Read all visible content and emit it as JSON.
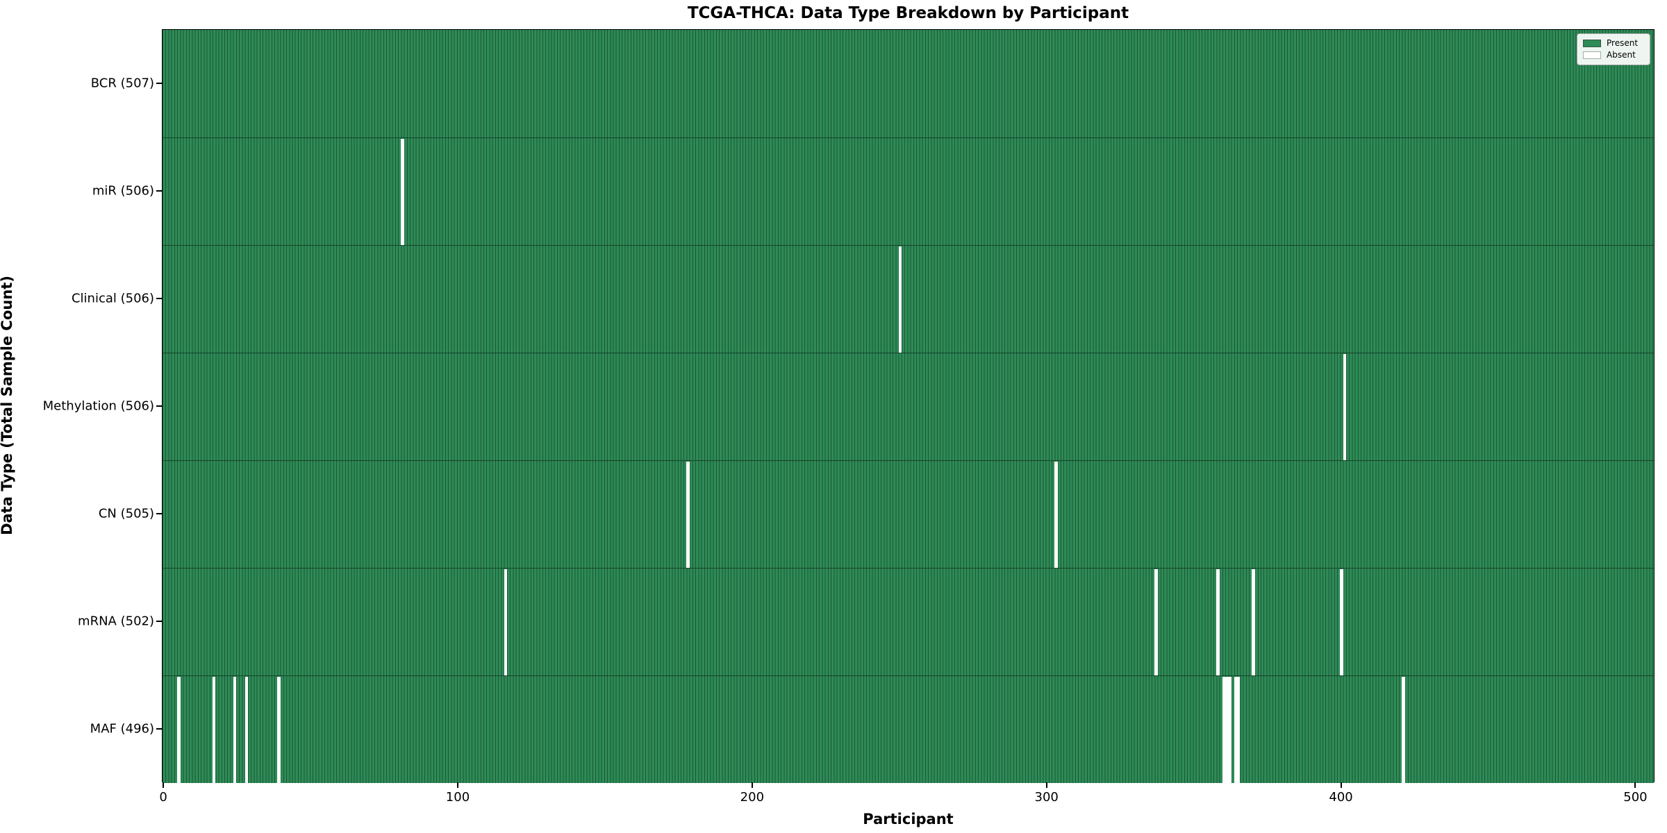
{
  "title": "TCGA-THCA: Data Type Breakdown by Participant",
  "x_axis_label": "Participant",
  "y_axis_label": "Data Type (Total Sample Count)",
  "legend": {
    "position": "upper right",
    "present_label": "Present",
    "absent_label": "Absent"
  },
  "colors": {
    "present": "#2e8b57",
    "absent": "#ffffff",
    "bar_edge": "#1b5736",
    "axis": "#000000",
    "background": "#ffffff"
  },
  "chart_data": {
    "type": "heatmap",
    "subtype": "presence-absence-matrix",
    "title": "TCGA-THCA: Data Type Breakdown by Participant",
    "xlabel": "Participant",
    "ylabel": "Data Type (Total Sample Count)",
    "x_ticks": [
      0,
      100,
      200,
      300,
      400,
      500
    ],
    "xlim": [
      0,
      507
    ],
    "total_participants": 507,
    "grid": false,
    "legend_entries": [
      "Present",
      "Absent"
    ],
    "rows": [
      {
        "label": "BCR (507)",
        "data_type": "BCR",
        "count": 507,
        "absent_participants": []
      },
      {
        "label": "miR (506)",
        "data_type": "miR",
        "count": 506,
        "absent_participants": [
          81
        ]
      },
      {
        "label": "Clinical (506)",
        "data_type": "Clinical",
        "count": 506,
        "absent_participants": [
          250
        ]
      },
      {
        "label": "Methylation (506)",
        "data_type": "Methylation",
        "count": 506,
        "absent_participants": [
          401
        ]
      },
      {
        "label": "CN (505)",
        "data_type": "CN",
        "count": 505,
        "absent_participants": [
          178,
          303
        ]
      },
      {
        "label": "mRNA (502)",
        "data_type": "mRNA",
        "count": 502,
        "absent_participants": [
          116,
          337,
          358,
          370,
          400
        ]
      },
      {
        "label": "MAF (496)",
        "data_type": "MAF",
        "count": 496,
        "absent_participants": [
          5,
          17,
          24,
          28,
          39,
          360,
          361,
          362,
          364,
          365,
          421
        ]
      }
    ]
  }
}
